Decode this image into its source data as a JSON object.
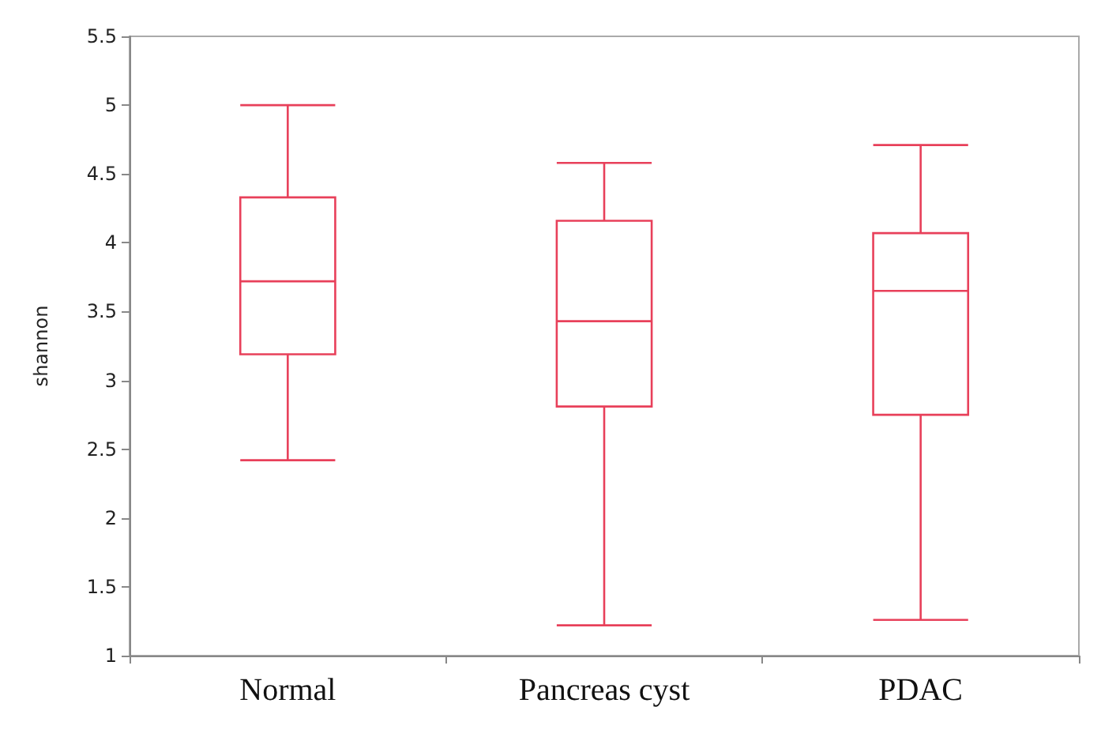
{
  "chart_data": {
    "type": "box",
    "ylabel": "shannon",
    "categories": [
      "Normal",
      "Pancreas cyst",
      "PDAC"
    ],
    "color": "#e8405a",
    "boxes": [
      {
        "low": 2.42,
        "q1": 3.19,
        "median": 3.72,
        "q3": 4.33,
        "high": 5.0
      },
      {
        "low": 1.22,
        "q1": 2.81,
        "median": 3.43,
        "q3": 4.16,
        "high": 4.58
      },
      {
        "low": 1.26,
        "q1": 2.75,
        "median": 3.65,
        "q3": 4.07,
        "high": 4.71
      }
    ],
    "ylim": [
      1,
      5.5
    ],
    "yticks": [
      1,
      1.5,
      2,
      2.5,
      3,
      3.5,
      4,
      4.5,
      5,
      5.5
    ],
    "grid": false
  }
}
